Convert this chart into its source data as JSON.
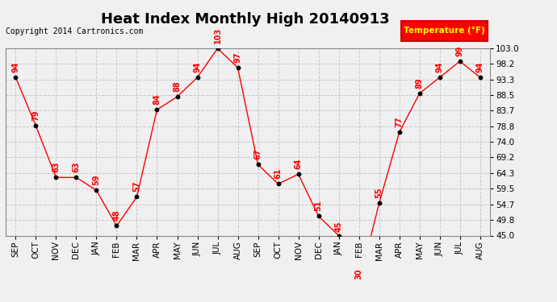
{
  "title": "Heat Index Monthly High 20140913",
  "copyright": "Copyright 2014 Cartronics.com",
  "legend_label": "Temperature (°F)",
  "months": [
    "SEP",
    "OCT",
    "NOV",
    "DEC",
    "JAN",
    "FEB",
    "MAR",
    "APR",
    "MAY",
    "JUN",
    "JUL",
    "AUG",
    "SEP",
    "OCT",
    "NOV",
    "DEC",
    "JAN",
    "FEB",
    "MAR",
    "APR",
    "MAY",
    "JUN",
    "JUL",
    "AUG"
  ],
  "values": [
    94,
    79,
    63,
    63,
    59,
    48,
    57,
    84,
    88,
    94,
    103,
    97,
    67,
    61,
    64,
    51,
    45,
    30,
    55,
    77,
    89,
    94,
    99,
    94
  ],
  "ylim": [
    45.0,
    103.0
  ],
  "yticks": [
    45.0,
    49.8,
    54.7,
    59.5,
    64.3,
    69.2,
    74.0,
    78.8,
    83.7,
    88.5,
    93.3,
    98.2,
    103.0
  ],
  "line_color": "red",
  "marker_color": "black",
  "label_color": "red",
  "grid_color": "#c8c8c8",
  "bg_color": "#f0f0f0",
  "legend_bg": "red",
  "legend_text_color": "yellow",
  "title_fontsize": 13,
  "label_fontsize": 7,
  "copyright_fontsize": 7
}
